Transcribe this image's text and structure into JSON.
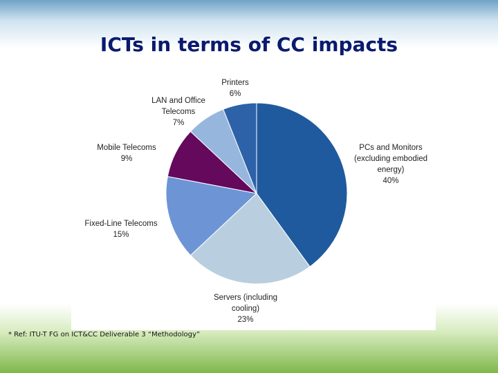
{
  "chart_data": {
    "type": "pie",
    "title": "ICTs in terms of CC impacts",
    "categories": [
      "PCs and Monitors (excluding embodied energy)",
      "Servers (including cooling)",
      "Fixed-Line Telecoms",
      "Mobile Telecoms",
      "LAN and Office Telecoms",
      "Printers"
    ],
    "values": [
      40,
      23,
      15,
      9,
      7,
      6
    ],
    "value_labels": [
      "40%",
      "23%",
      "15%",
      "9%",
      "7%",
      "6%"
    ],
    "colors": [
      "#1f5a9e",
      "#b9cfe0",
      "#6d95d5",
      "#64095c",
      "#97b6de",
      "#2d62a8"
    ],
    "footnote": "* Ref: ITU-T FG on ICT&CC Deliverable 3 “Methodology”"
  }
}
